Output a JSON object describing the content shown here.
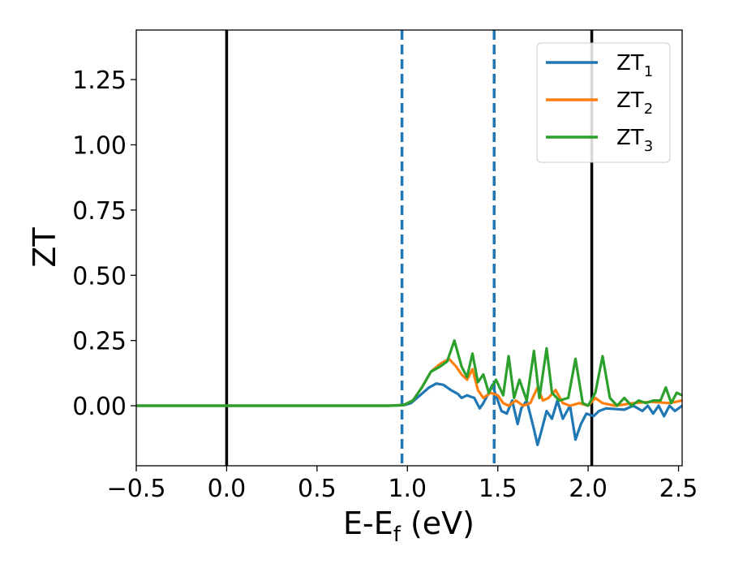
{
  "chart_data": {
    "type": "line",
    "title": "",
    "xlabel": "E-E",
    "xlabel_sub": "f",
    "xlabel_unit": " (eV)",
    "ylabel": "ZT",
    "xlim": [
      -0.5,
      2.52
    ],
    "ylim": [
      -0.23,
      1.44
    ],
    "x_ticks": [
      -0.5,
      0.0,
      0.5,
      1.0,
      1.5,
      2.0,
      2.5
    ],
    "x_tick_labels": [
      "−0.5",
      "0.0",
      "0.5",
      "1.0",
      "1.5",
      "2.0",
      "2.5"
    ],
    "y_ticks": [
      0.0,
      0.25,
      0.5,
      0.75,
      1.0,
      1.25
    ],
    "y_tick_labels": [
      "0.00",
      "0.25",
      "0.50",
      "0.75",
      "1.00",
      "1.25"
    ],
    "grid": false,
    "legend": "top-right",
    "vlines_solid": [
      0.0,
      2.02
    ],
    "vlines_dashed": [
      0.97,
      1.48
    ],
    "series": [
      {
        "name": "ZT",
        "sub": "1",
        "color": "#1f77b4",
        "points": [
          [
            -0.5,
            0
          ],
          [
            0.9,
            0
          ],
          [
            0.98,
            0.002
          ],
          [
            1.02,
            0.01
          ],
          [
            1.07,
            0.04
          ],
          [
            1.12,
            0.07
          ],
          [
            1.16,
            0.085
          ],
          [
            1.2,
            0.08
          ],
          [
            1.24,
            0.06
          ],
          [
            1.28,
            0.045
          ],
          [
            1.3,
            0.03
          ],
          [
            1.33,
            0.04
          ],
          [
            1.37,
            0.03
          ],
          [
            1.4,
            -0.01
          ],
          [
            1.42,
            0.01
          ],
          [
            1.45,
            0.05
          ],
          [
            1.47,
            0.08
          ],
          [
            1.5,
            0.02
          ],
          [
            1.52,
            -0.02
          ],
          [
            1.55,
            -0.03
          ],
          [
            1.58,
            0.02
          ],
          [
            1.61,
            -0.07
          ],
          [
            1.63,
            -0.01
          ],
          [
            1.66,
            0.02
          ],
          [
            1.7,
            -0.09
          ],
          [
            1.72,
            -0.15
          ],
          [
            1.74,
            -0.1
          ],
          [
            1.77,
            -0.02
          ],
          [
            1.8,
            -0.05
          ],
          [
            1.83,
            0.02
          ],
          [
            1.86,
            -0.05
          ],
          [
            1.9,
            0.0
          ],
          [
            1.93,
            -0.13
          ],
          [
            1.96,
            -0.07
          ],
          [
            1.99,
            -0.03
          ],
          [
            2.03,
            -0.04
          ],
          [
            2.06,
            -0.02
          ],
          [
            2.1,
            -0.01
          ],
          [
            2.2,
            -0.015
          ],
          [
            2.25,
            0.0
          ],
          [
            2.3,
            -0.02
          ],
          [
            2.33,
            0.0
          ],
          [
            2.36,
            -0.03
          ],
          [
            2.39,
            0.0
          ],
          [
            2.42,
            -0.04
          ],
          [
            2.45,
            0.0
          ],
          [
            2.48,
            -0.02
          ],
          [
            2.52,
            0.0
          ]
        ]
      },
      {
        "name": "ZT",
        "sub": "2",
        "color": "#ff7f0e",
        "points": [
          [
            -0.5,
            0
          ],
          [
            0.9,
            0
          ],
          [
            0.98,
            0.003
          ],
          [
            1.03,
            0.02
          ],
          [
            1.08,
            0.07
          ],
          [
            1.13,
            0.13
          ],
          [
            1.18,
            0.16
          ],
          [
            1.23,
            0.18
          ],
          [
            1.27,
            0.15
          ],
          [
            1.3,
            0.12
          ],
          [
            1.33,
            0.1
          ],
          [
            1.36,
            0.14
          ],
          [
            1.39,
            0.06
          ],
          [
            1.42,
            0.03
          ],
          [
            1.46,
            0.05
          ],
          [
            1.5,
            0.04
          ],
          [
            1.53,
            0.01
          ],
          [
            1.56,
            0.0
          ],
          [
            1.6,
            0.02
          ],
          [
            1.64,
            0.0
          ],
          [
            1.68,
            0.01
          ],
          [
            1.72,
            0.07
          ],
          [
            1.75,
            0.02
          ],
          [
            1.78,
            0.03
          ],
          [
            1.82,
            0.06
          ],
          [
            1.86,
            0.01
          ],
          [
            1.9,
            0.0
          ],
          [
            1.95,
            0.01
          ],
          [
            2.0,
            0.0
          ],
          [
            2.04,
            0.03
          ],
          [
            2.08,
            0.01
          ],
          [
            2.15,
            0.0
          ],
          [
            2.25,
            0.01
          ],
          [
            2.35,
            0.015
          ],
          [
            2.45,
            0.01
          ],
          [
            2.52,
            0.02
          ]
        ]
      },
      {
        "name": "ZT",
        "sub": "3",
        "color": "#2ca02c",
        "points": [
          [
            -0.5,
            0
          ],
          [
            0.9,
            0
          ],
          [
            0.98,
            0.003
          ],
          [
            1.03,
            0.02
          ],
          [
            1.08,
            0.07
          ],
          [
            1.13,
            0.13
          ],
          [
            1.18,
            0.15
          ],
          [
            1.22,
            0.17
          ],
          [
            1.26,
            0.25
          ],
          [
            1.3,
            0.15
          ],
          [
            1.33,
            0.11
          ],
          [
            1.36,
            0.2
          ],
          [
            1.39,
            0.09
          ],
          [
            1.42,
            0.12
          ],
          [
            1.45,
            0.05
          ],
          [
            1.49,
            0.1
          ],
          [
            1.53,
            0.04
          ],
          [
            1.56,
            0.19
          ],
          [
            1.59,
            0.03
          ],
          [
            1.62,
            0.1
          ],
          [
            1.66,
            0.02
          ],
          [
            1.7,
            0.21
          ],
          [
            1.73,
            0.03
          ],
          [
            1.77,
            0.22
          ],
          [
            1.8,
            0.05
          ],
          [
            1.84,
            0.02
          ],
          [
            1.89,
            0.03
          ],
          [
            1.93,
            0.18
          ],
          [
            1.97,
            0.01
          ],
          [
            2.0,
            0.0
          ],
          [
            2.04,
            0.05
          ],
          [
            2.08,
            0.19
          ],
          [
            2.12,
            0.03
          ],
          [
            2.16,
            0.0
          ],
          [
            2.2,
            0.03
          ],
          [
            2.24,
            0.0
          ],
          [
            2.28,
            0.02
          ],
          [
            2.32,
            0.01
          ],
          [
            2.36,
            0.02
          ],
          [
            2.4,
            0.02
          ],
          [
            2.43,
            0.07
          ],
          [
            2.46,
            0.01
          ],
          [
            2.49,
            0.05
          ],
          [
            2.52,
            0.04
          ]
        ]
      }
    ]
  }
}
